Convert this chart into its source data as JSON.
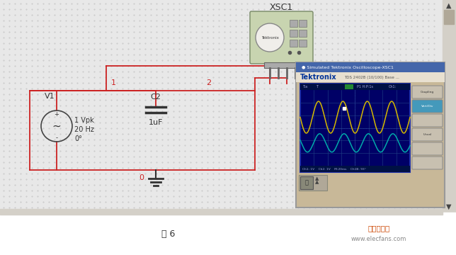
{
  "bg_color": "#e8e8e8",
  "dot_grid_color": "#c0c0c0",
  "wire_color": "#cc2222",
  "source_label": "V1",
  "source_params": "1 Vpk\n20 Hz\n0°",
  "cap_label": "C2",
  "cap_value": "1uF",
  "node1": "1",
  "node2": "2",
  "node0": "0",
  "xsc1_label": "XSC1",
  "xsc1_bg": "#c8d4b0",
  "osc_win_title": "Simulated Tektronix Oscilloscope-XSC1",
  "osc_brand": "Tektronix",
  "osc_model": "TDS 2402B (10/100) Base ...",
  "osc_outer_bg": "#c8b898",
  "osc_screen_bg": "#000066",
  "osc_grid_color": "#224488",
  "ch1_color": "#d4b800",
  "ch2_color": "#00aaaa",
  "ch1_amp": 0.75,
  "ch2_amp": 0.55,
  "ch1_voff": 0.15,
  "ch2_voff": -0.5,
  "ch1_freq": 4.5,
  "ch2_freq": 4.5,
  "status_text": "Ch1: 1V    Ch2: 1V    M:20ms    Ch1B: 93°",
  "bottom_text": "图 6",
  "watermark": "www.elecfans.com",
  "elecfans_text": "电子发烧友",
  "right_panel_bg": "#d8d0c0",
  "scrollbar_color": "#cccccc",
  "bottom_bar_color": "#cccccc"
}
